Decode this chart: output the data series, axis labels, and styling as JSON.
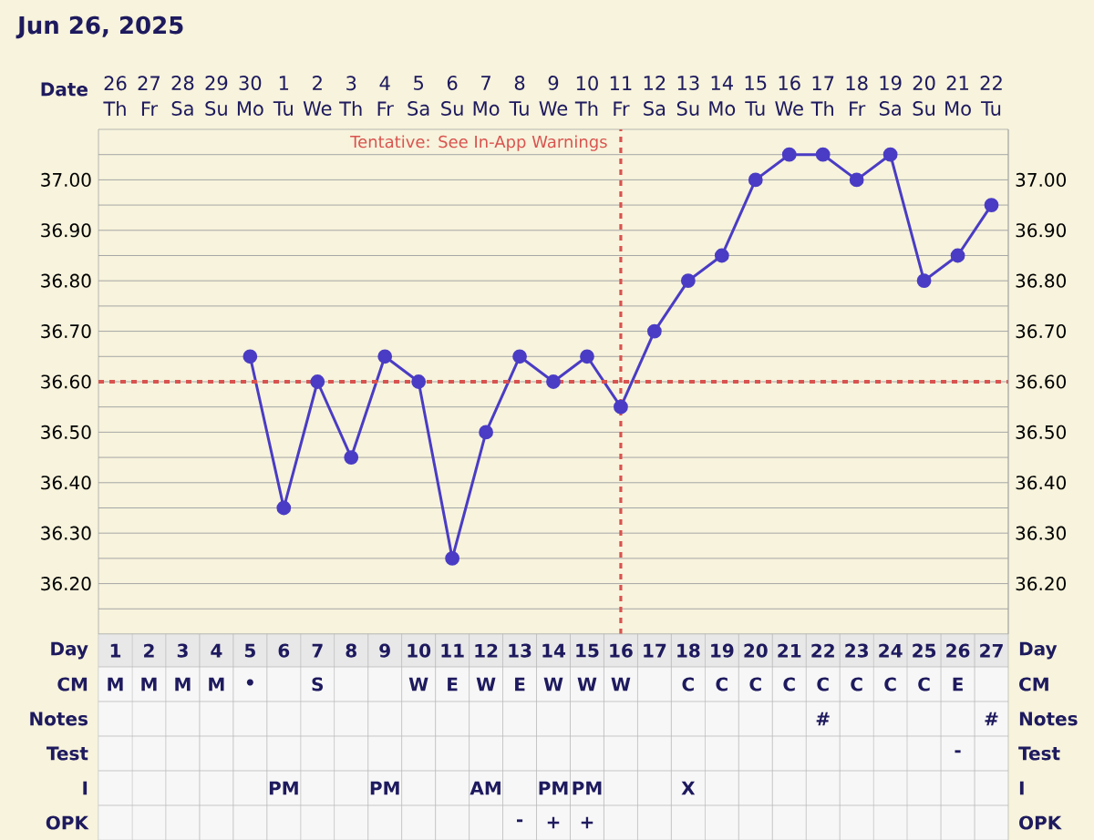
{
  "chart_data": [
    {
      "type": "line",
      "title": "Jun 26, 2025",
      "xlabel": "Date",
      "categories": [
        "26 Th",
        "27 Fr",
        "28 Sa",
        "29 Su",
        "30 Mo",
        "1 Tu",
        "2 We",
        "3 Th",
        "4 Fr",
        "5 Sa",
        "6 Su",
        "7 Mo",
        "8 Tu",
        "9 We",
        "10 Th",
        "11 Fr",
        "12 Sa",
        "13 Su",
        "14 Mo",
        "15 Tu",
        "16 We",
        "17 Th",
        "18 Fr",
        "19 Sa",
        "20 Su",
        "21 Mo",
        "22 Tu"
      ],
      "series": [
        {
          "color": "#4a3cc4",
          "values": [
            null,
            null,
            null,
            null,
            36.65,
            36.35,
            36.6,
            36.45,
            36.65,
            36.6,
            36.25,
            36.5,
            36.65,
            36.6,
            36.65,
            36.55,
            36.7,
            36.8,
            36.85,
            37.0,
            37.05,
            37.05,
            37.0,
            37.05,
            36.8,
            36.85,
            36.95
          ]
        }
      ],
      "ylim": [
        36.1,
        37.1
      ],
      "yticks": [
        {
          "value": 36.15,
          "label": null
        },
        {
          "value": 36.2,
          "label": "36.20"
        },
        {
          "value": 36.25,
          "label": null
        },
        {
          "value": 36.3,
          "label": "36.30"
        },
        {
          "value": 36.35,
          "label": null
        },
        {
          "value": 36.4,
          "label": "36.40"
        },
        {
          "value": 36.45,
          "label": null
        },
        {
          "value": 36.5,
          "label": "36.50"
        },
        {
          "value": 36.55,
          "label": null
        },
        {
          "value": 36.6,
          "label": "36.60"
        },
        {
          "value": 36.65,
          "label": null
        },
        {
          "value": 36.7,
          "label": "36.70"
        },
        {
          "value": 36.75,
          "label": null
        },
        {
          "value": 36.8,
          "label": "36.80"
        },
        {
          "value": 36.85,
          "label": null
        },
        {
          "value": 36.9,
          "label": "36.90"
        },
        {
          "value": 36.95,
          "label": null
        },
        {
          "value": 37.0,
          "label": "37.00"
        },
        {
          "value": 37.05,
          "label": null
        }
      ],
      "y2lim": [
        36.1,
        37.1
      ],
      "y2ticks": [
        {
          "value": 36.15,
          "label": null
        },
        {
          "value": 36.2,
          "label": "36.20"
        },
        {
          "value": 36.25,
          "label": null
        },
        {
          "value": 36.3,
          "label": "36.30"
        },
        {
          "value": 36.35,
          "label": null
        },
        {
          "value": 36.4,
          "label": "36.40"
        },
        {
          "value": 36.45,
          "label": null
        },
        {
          "value": 36.5,
          "label": "36.50"
        },
        {
          "value": 36.55,
          "label": null
        },
        {
          "value": 36.6,
          "label": "36.60"
        },
        {
          "value": 36.65,
          "label": null
        },
        {
          "value": 36.7,
          "label": "36.70"
        },
        {
          "value": 36.75,
          "label": null
        },
        {
          "value": 36.8,
          "label": "36.80"
        },
        {
          "value": 36.85,
          "label": null
        },
        {
          "value": 36.9,
          "label": "36.90"
        },
        {
          "value": 36.95,
          "label": null
        },
        {
          "value": 37.0,
          "label": "37.00"
        },
        {
          "value": 37.05,
          "label": null
        }
      ],
      "ref_lines": [
        {
          "axis": "y",
          "value": 36.6,
          "color": "#d9534f",
          "line_style": "dashed"
        },
        {
          "axis": "x",
          "value": "11 Fr",
          "label": "Tentative: See In-App Warnings",
          "color": "#d9534f",
          "line_style": "dashed"
        }
      ],
      "grid": true,
      "marker": "circle",
      "line_style": "solid"
    },
    {
      "type": "heatmap",
      "xlabel": "Day",
      "categories": [
        "1",
        "2",
        "3",
        "4",
        "5",
        "6",
        "7",
        "8",
        "9",
        "10",
        "11",
        "12",
        "13",
        "14",
        "15",
        "16",
        "17",
        "18",
        "19",
        "20",
        "21",
        "22",
        "23",
        "24",
        "25",
        "26",
        "27"
      ],
      "y_categories": [
        "CM",
        "Notes",
        "Test",
        "I",
        "OPK"
      ],
      "y2_categories": [
        "CM",
        "Notes",
        "Test",
        "I",
        "OPK"
      ],
      "cells": [
        [
          null,
          null,
          null,
          null,
          null,
          null,
          null,
          null,
          null,
          null,
          null,
          null,
          null,
          null,
          null,
          null,
          null,
          null,
          null,
          null,
          null,
          null,
          null,
          null,
          null,
          null,
          null
        ],
        [
          null,
          null,
          null,
          null,
          null,
          null,
          null,
          null,
          null,
          null,
          null,
          null,
          null,
          null,
          null,
          null,
          null,
          null,
          null,
          null,
          null,
          null,
          null,
          null,
          null,
          null,
          null
        ],
        [
          null,
          null,
          null,
          null,
          null,
          null,
          null,
          null,
          null,
          null,
          null,
          null,
          null,
          null,
          null,
          null,
          null,
          null,
          null,
          null,
          null,
          null,
          null,
          null,
          null,
          null,
          null
        ],
        [
          null,
          null,
          null,
          null,
          null,
          null,
          null,
          null,
          null,
          null,
          null,
          null,
          null,
          null,
          null,
          null,
          null,
          null,
          null,
          null,
          null,
          null,
          null,
          null,
          null,
          null,
          null
        ],
        [
          null,
          null,
          null,
          null,
          null,
          null,
          null,
          null,
          null,
          null,
          null,
          null,
          null,
          null,
          null,
          null,
          null,
          null,
          null,
          null,
          null,
          null,
          null,
          null,
          null,
          null,
          null
        ]
      ],
      "cell_labels": [
        [
          "M",
          "M",
          "M",
          "M",
          "•",
          null,
          "S",
          null,
          null,
          "W",
          "E",
          "W",
          "E",
          "W",
          "W",
          "W",
          null,
          "C",
          "C",
          "C",
          "C",
          "C",
          "C",
          "C",
          "C",
          "E",
          null
        ],
        [
          null,
          null,
          null,
          null,
          null,
          null,
          null,
          null,
          null,
          null,
          null,
          null,
          null,
          null,
          null,
          null,
          null,
          null,
          null,
          null,
          null,
          "#",
          null,
          null,
          null,
          null,
          "#"
        ],
        [
          null,
          null,
          null,
          null,
          null,
          null,
          null,
          null,
          null,
          null,
          null,
          null,
          null,
          null,
          null,
          null,
          null,
          null,
          null,
          null,
          null,
          null,
          null,
          null,
          null,
          "-",
          null
        ],
        [
          null,
          null,
          null,
          null,
          null,
          "PM",
          null,
          null,
          "PM",
          null,
          null,
          "AM",
          null,
          "PM",
          "PM",
          null,
          null,
          "X",
          null,
          null,
          null,
          null,
          null,
          null,
          null,
          null,
          null
        ],
        [
          null,
          null,
          null,
          null,
          null,
          null,
          null,
          null,
          null,
          null,
          null,
          null,
          "-",
          "+",
          "+",
          null,
          null,
          null,
          null,
          null,
          null,
          null,
          null,
          null,
          null,
          null,
          null
        ]
      ]
    }
  ]
}
